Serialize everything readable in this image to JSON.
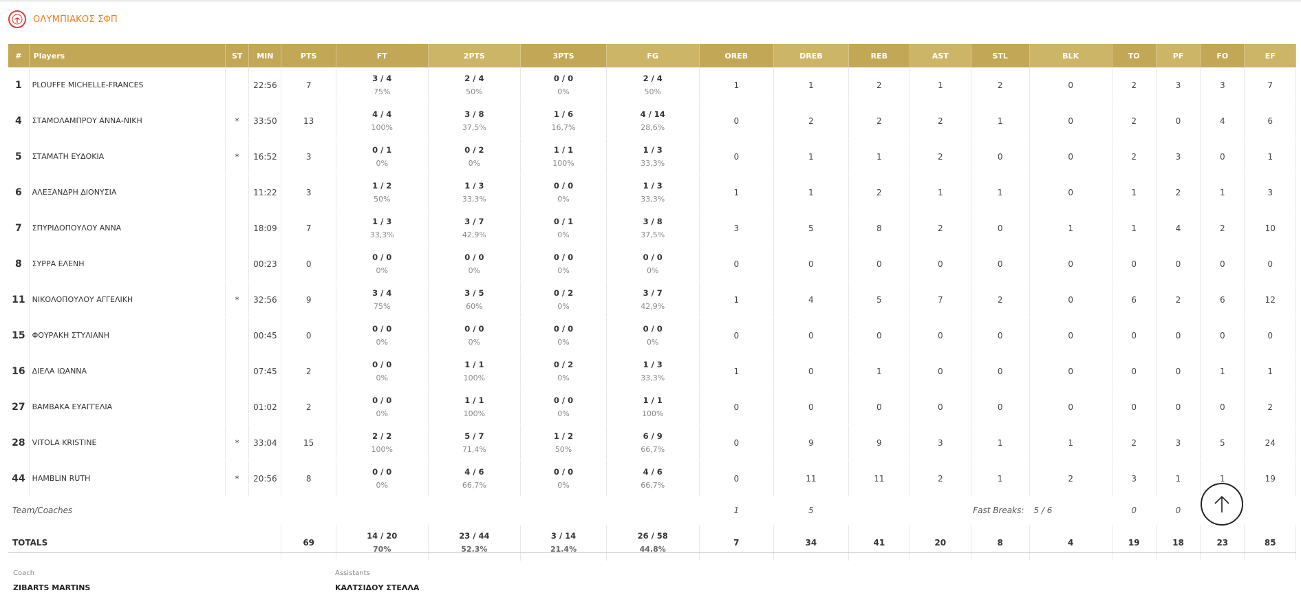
{
  "team": {
    "name": "ΟΛΥΜΠΙΑΚΟΣ ΣΦΠ"
  },
  "columns": [
    "#",
    "Players",
    "ST",
    "MIN",
    "PTS",
    "FT",
    "2PTS",
    "3PTS",
    "FG",
    "OREB",
    "DREB",
    "REB",
    "AST",
    "STL",
    "BLK",
    "TO",
    "PF",
    "FO",
    "EF"
  ],
  "players": [
    {
      "num": "1",
      "name": "PLOUFFE MICHELLE-FRANCES",
      "st": "",
      "min": "22:56",
      "pts": "7",
      "ft": {
        "m": "3 / 4",
        "p": "75%"
      },
      "p2": {
        "m": "2 / 4",
        "p": "50%"
      },
      "p3": {
        "m": "0 / 0",
        "p": "0%"
      },
      "fg": {
        "m": "2 / 4",
        "p": "50%"
      },
      "oreb": "1",
      "dreb": "1",
      "reb": "2",
      "ast": "1",
      "stl": "2",
      "blk": "0",
      "to": "2",
      "pf": "3",
      "fo": "3",
      "ef": "7"
    },
    {
      "num": "4",
      "name": "ΣΤΑΜΟΛΑΜΠΡΟΥ ΑΝΝΑ-ΝΙΚΗ",
      "st": "*",
      "min": "33:50",
      "pts": "13",
      "ft": {
        "m": "4 / 4",
        "p": "100%"
      },
      "p2": {
        "m": "3 / 8",
        "p": "37,5%"
      },
      "p3": {
        "m": "1 / 6",
        "p": "16,7%"
      },
      "fg": {
        "m": "4 / 14",
        "p": "28,6%"
      },
      "oreb": "0",
      "dreb": "2",
      "reb": "2",
      "ast": "2",
      "stl": "1",
      "blk": "0",
      "to": "2",
      "pf": "0",
      "fo": "4",
      "ef": "6"
    },
    {
      "num": "5",
      "name": "ΣΤΑΜΑΤΗ ΕΥΔΟΚΙΑ",
      "st": "*",
      "min": "16:52",
      "pts": "3",
      "ft": {
        "m": "0 / 1",
        "p": "0%"
      },
      "p2": {
        "m": "0 / 2",
        "p": "0%"
      },
      "p3": {
        "m": "1 / 1",
        "p": "100%"
      },
      "fg": {
        "m": "1 / 3",
        "p": "33,3%"
      },
      "oreb": "0",
      "dreb": "1",
      "reb": "1",
      "ast": "2",
      "stl": "0",
      "blk": "0",
      "to": "2",
      "pf": "3",
      "fo": "0",
      "ef": "1"
    },
    {
      "num": "6",
      "name": "ΑΛΕΞΑΝΔΡΗ ΔΙΟΝΥΣΙΑ",
      "st": "",
      "min": "11:22",
      "pts": "3",
      "ft": {
        "m": "1 / 2",
        "p": "50%"
      },
      "p2": {
        "m": "1 / 3",
        "p": "33,3%"
      },
      "p3": {
        "m": "0 / 0",
        "p": "0%"
      },
      "fg": {
        "m": "1 / 3",
        "p": "33,3%"
      },
      "oreb": "1",
      "dreb": "1",
      "reb": "2",
      "ast": "1",
      "stl": "1",
      "blk": "0",
      "to": "1",
      "pf": "2",
      "fo": "1",
      "ef": "3"
    },
    {
      "num": "7",
      "name": "ΣΠΥΡΙΔΟΠΟΥΛΟΥ ΑΝΝΑ",
      "st": "",
      "min": "18:09",
      "pts": "7",
      "ft": {
        "m": "1 / 3",
        "p": "33,3%"
      },
      "p2": {
        "m": "3 / 7",
        "p": "42,9%"
      },
      "p3": {
        "m": "0 / 1",
        "p": "0%"
      },
      "fg": {
        "m": "3 / 8",
        "p": "37,5%"
      },
      "oreb": "3",
      "dreb": "5",
      "reb": "8",
      "ast": "2",
      "stl": "0",
      "blk": "1",
      "to": "1",
      "pf": "4",
      "fo": "2",
      "ef": "10"
    },
    {
      "num": "8",
      "name": "ΣΥΡΡΑ ΕΛΕΝΗ",
      "st": "",
      "min": "00:23",
      "pts": "0",
      "ft": {
        "m": "0 / 0",
        "p": "0%"
      },
      "p2": {
        "m": "0 / 0",
        "p": "0%"
      },
      "p3": {
        "m": "0 / 0",
        "p": "0%"
      },
      "fg": {
        "m": "0 / 0",
        "p": "0%"
      },
      "oreb": "0",
      "dreb": "0",
      "reb": "0",
      "ast": "0",
      "stl": "0",
      "blk": "0",
      "to": "0",
      "pf": "0",
      "fo": "0",
      "ef": "0"
    },
    {
      "num": "11",
      "name": "ΝΙΚΟΛΟΠΟΥΛΟΥ ΑΓΓΕΛΙΚΗ",
      "st": "*",
      "min": "32:56",
      "pts": "9",
      "ft": {
        "m": "3 / 4",
        "p": "75%"
      },
      "p2": {
        "m": "3 / 5",
        "p": "60%"
      },
      "p3": {
        "m": "0 / 2",
        "p": "0%"
      },
      "fg": {
        "m": "3 / 7",
        "p": "42,9%"
      },
      "oreb": "1",
      "dreb": "4",
      "reb": "5",
      "ast": "7",
      "stl": "2",
      "blk": "0",
      "to": "6",
      "pf": "2",
      "fo": "6",
      "ef": "12"
    },
    {
      "num": "15",
      "name": "ΦΟΥΡΑΚΗ ΣΤΥΛΙΑΝΗ",
      "st": "",
      "min": "00:45",
      "pts": "0",
      "ft": {
        "m": "0 / 0",
        "p": "0%"
      },
      "p2": {
        "m": "0 / 0",
        "p": "0%"
      },
      "p3": {
        "m": "0 / 0",
        "p": "0%"
      },
      "fg": {
        "m": "0 / 0",
        "p": "0%"
      },
      "oreb": "0",
      "dreb": "0",
      "reb": "0",
      "ast": "0",
      "stl": "0",
      "blk": "0",
      "to": "0",
      "pf": "0",
      "fo": "0",
      "ef": "0"
    },
    {
      "num": "16",
      "name": "ΔΙΕΛΑ ΙΩΑΝΝΑ",
      "st": "",
      "min": "07:45",
      "pts": "2",
      "ft": {
        "m": "0 / 0",
        "p": "0%"
      },
      "p2": {
        "m": "1 / 1",
        "p": "100%"
      },
      "p3": {
        "m": "0 / 2",
        "p": "0%"
      },
      "fg": {
        "m": "1 / 3",
        "p": "33,3%"
      },
      "oreb": "1",
      "dreb": "0",
      "reb": "1",
      "ast": "0",
      "stl": "0",
      "blk": "0",
      "to": "0",
      "pf": "0",
      "fo": "1",
      "ef": "1"
    },
    {
      "num": "27",
      "name": "ΒΑΜΒΑΚΑ ΕΥΑΓΓΕΛΙΑ",
      "st": "",
      "min": "01:02",
      "pts": "2",
      "ft": {
        "m": "0 / 0",
        "p": "0%"
      },
      "p2": {
        "m": "1 / 1",
        "p": "100%"
      },
      "p3": {
        "m": "0 / 0",
        "p": "0%"
      },
      "fg": {
        "m": "1 / 1",
        "p": "100%"
      },
      "oreb": "0",
      "dreb": "0",
      "reb": "0",
      "ast": "0",
      "stl": "0",
      "blk": "0",
      "to": "0",
      "pf": "0",
      "fo": "0",
      "ef": "2"
    },
    {
      "num": "28",
      "name": "VITOLA KRISTINE",
      "st": "*",
      "min": "33:04",
      "pts": "15",
      "ft": {
        "m": "2 / 2",
        "p": "100%"
      },
      "p2": {
        "m": "5 / 7",
        "p": "71,4%"
      },
      "p3": {
        "m": "1 / 2",
        "p": "50%"
      },
      "fg": {
        "m": "6 / 9",
        "p": "66,7%"
      },
      "oreb": "0",
      "dreb": "9",
      "reb": "9",
      "ast": "3",
      "stl": "1",
      "blk": "1",
      "to": "2",
      "pf": "3",
      "fo": "5",
      "ef": "24"
    },
    {
      "num": "44",
      "name": "HAMBLIN RUTH",
      "st": "*",
      "min": "20:56",
      "pts": "8",
      "ft": {
        "m": "0 / 0",
        "p": "0%"
      },
      "p2": {
        "m": "4 / 6",
        "p": "66,7%"
      },
      "p3": {
        "m": "0 / 0",
        "p": "0%"
      },
      "fg": {
        "m": "4 / 6",
        "p": "66,7%"
      },
      "oreb": "0",
      "dreb": "11",
      "reb": "11",
      "ast": "2",
      "stl": "1",
      "blk": "2",
      "to": "3",
      "pf": "1",
      "fo": "1",
      "ef": "19"
    }
  ],
  "team_row": {
    "label": "Team/Coaches",
    "oreb": "1",
    "dreb": "5",
    "fast_breaks_label": "Fast Breaks:",
    "fast_breaks": "5 / 6",
    "to": "0",
    "pf": "0"
  },
  "totals": {
    "label": "TOTALS",
    "pts": "69",
    "ft": {
      "m": "14 / 20",
      "p": "70%"
    },
    "p2": {
      "m": "23 / 44",
      "p": "52.3%"
    },
    "p3": {
      "m": "3 / 14",
      "p": "21.4%"
    },
    "fg": {
      "m": "26 / 58",
      "p": "44.8%"
    },
    "oreb": "7",
    "dreb": "34",
    "reb": "41",
    "ast": "20",
    "stl": "8",
    "blk": "4",
    "to": "19",
    "pf": "18",
    "fo": "23",
    "ef": "85"
  },
  "coach": {
    "label": "Coach",
    "name": "ZIBARTS MARTINS"
  },
  "assistants": {
    "label": "Assistants",
    "name": "ΚΑΛΤΣΙΔΟΥ ΣΤΕΛΛΑ"
  },
  "icons": {
    "logo": "club-logo-icon",
    "scroll_top": "arrow-up-icon"
  },
  "colors": {
    "header": "#c2a756",
    "team_name": "#f07c1c",
    "logo": "#e53935"
  }
}
